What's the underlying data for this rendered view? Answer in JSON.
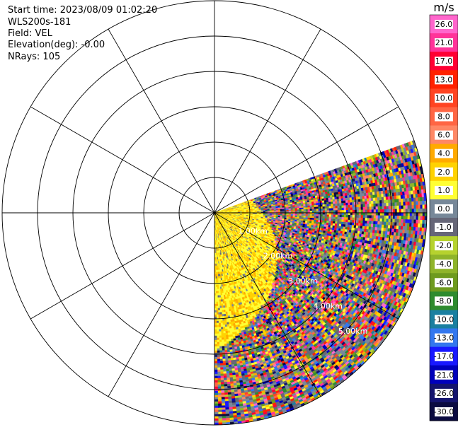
{
  "header": {
    "start_time": "Start time: 2023/08/09 01:02:20",
    "station": "WLS200s-181",
    "field": "Field: VEL",
    "elevation": "Elevation(deg): -0.00",
    "nrays": "NRays: 105"
  },
  "chart_data": {
    "type": "polar-ppi",
    "field": "VEL",
    "elevation_deg": -0.0,
    "nrays": 105,
    "sector_azimuth_deg": [
      70,
      180
    ],
    "range_rings_km": [
      1,
      2,
      3,
      4,
      5,
      6
    ],
    "ring_labels": [
      "1.00km",
      "2.00km",
      "3.00km",
      "4.00km",
      "5.00km"
    ],
    "spoke_interval_deg": 30,
    "colorbar": {
      "unit": "m/s",
      "ticks": [
        "26.0",
        "21.0",
        "17.0",
        "13.0",
        "10.0",
        "8.0",
        "6.0",
        "4.0",
        "2.0",
        "1.0",
        "0.0",
        "-1.0",
        "-2.0",
        "-4.0",
        "-6.0",
        "-8.0",
        "-10.0",
        "-13.0",
        "-17.0",
        "-21.0",
        "-26.0",
        "-30.0"
      ],
      "colors": [
        "#ff66cc",
        "#ff3399",
        "#ff0033",
        "#ff2200",
        "#ff4422",
        "#ff6644",
        "#ff8866",
        "#ffaa00",
        "#ffd200",
        "#ffff33",
        "#778899",
        "#666677",
        "#b6d22e",
        "#8fb42a",
        "#6e9a1e",
        "#2e8b2e",
        "#1a7fa0",
        "#3377ee",
        "#1818ff",
        "#0000bb",
        "#14146e",
        "#0a0a40"
      ]
    }
  }
}
